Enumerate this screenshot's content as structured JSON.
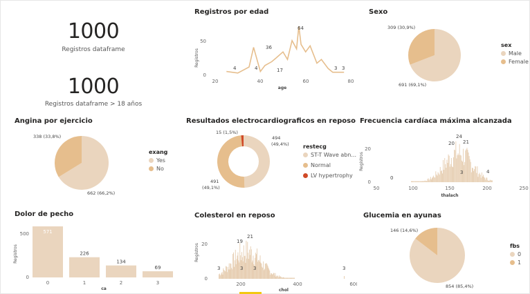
{
  "colors": {
    "light": "#ead5be",
    "dark": "#e6be8d",
    "red": "#d04a27",
    "axis": "#666666",
    "line": "#e6be8d"
  },
  "kpi1": {
    "value": "1000",
    "label": "Registros dataframe"
  },
  "kpi2": {
    "value": "1000",
    "label": "Registros dataframe > 18 años"
  },
  "age": {
    "title": "Registros por edad",
    "ylabel": "Registros",
    "xlabel": "age",
    "yticks": [
      "50",
      "0"
    ],
    "xticks": [
      "20",
      "40",
      "60",
      "80"
    ],
    "labels": [
      "4",
      "4",
      "36",
      "17",
      "64",
      "3",
      "3"
    ]
  },
  "sex": {
    "title": "Sexo",
    "legend_title": "sex",
    "items": [
      {
        "label": "Male",
        "value": 691,
        "text": "691 (69,1%)"
      },
      {
        "label": "Female",
        "value": 309,
        "text": "309 (30,9%)"
      }
    ]
  },
  "angina": {
    "title": "Angina por ejercicio",
    "legend_title": "exang",
    "items": [
      {
        "label": "Yes",
        "value": 662,
        "text": "662 (66,2%)"
      },
      {
        "label": "No",
        "value": 338,
        "text": "338 (33,8%)"
      }
    ]
  },
  "ecg": {
    "title": "Resultados electrocardiograficos en reposo",
    "legend_title": "restecg",
    "items": [
      {
        "label": "ST-T Wave abn...",
        "value": 494,
        "text": "494 (49,4%)"
      },
      {
        "label": "Normal",
        "value": 491,
        "text": "491 (49,1%)"
      },
      {
        "label": "LV hypertrophy",
        "value": 15,
        "text": "15 (1,5%)"
      }
    ]
  },
  "hr": {
    "title": "Frecuencia cardíaca máxima alcanzada",
    "ylabel": "Registros",
    "xlabel": "thalach",
    "yticks": [
      "20",
      "0"
    ],
    "xticks": [
      "50",
      "100",
      "150",
      "200",
      "250"
    ],
    "labels": [
      "0",
      "20",
      "24",
      "21",
      "3",
      "4"
    ]
  },
  "chest": {
    "title": "Dolor de pecho",
    "ylabel": "Registros",
    "xlabel": "ca",
    "yticks": [
      "500",
      "0"
    ],
    "categories": [
      "0",
      "1",
      "2",
      "3"
    ],
    "values": [
      "571",
      "226",
      "134",
      "69"
    ]
  },
  "chol": {
    "title": "Colesterol en reposo",
    "ylabel": "Registros",
    "xlabel": "chol",
    "yticks": [
      "20",
      "0"
    ],
    "xticks": [
      "200",
      "400",
      "600"
    ],
    "labels": [
      "19",
      "21",
      "3",
      "3",
      "3",
      "3"
    ]
  },
  "fbs": {
    "title": "Glucemia en ayunas",
    "legend_title": "fbs",
    "items": [
      {
        "label": "0",
        "value": 854,
        "text": "854 (85,4%)"
      },
      {
        "label": "1",
        "value": 146,
        "text": "146 (14,6%)"
      }
    ]
  },
  "chart_data": [
    {
      "type": "line",
      "title": "Registros por edad",
      "xlabel": "age",
      "ylabel": "Registros",
      "x": [
        25,
        30,
        35,
        37,
        40,
        42,
        45,
        47,
        50,
        52,
        54,
        56,
        57,
        58,
        60,
        62,
        65,
        67,
        70,
        72,
        75,
        77
      ],
      "y": [
        4,
        2,
        10,
        36,
        4,
        12,
        17,
        22,
        30,
        20,
        45,
        34,
        64,
        40,
        30,
        38,
        15,
        20,
        8,
        3,
        3,
        3
      ],
      "xlim": [
        15,
        80
      ]
    },
    {
      "type": "pie",
      "title": "Sexo",
      "labels": [
        "Male",
        "Female"
      ],
      "values": [
        691,
        309
      ]
    },
    {
      "type": "pie",
      "title": "Angina por ejercicio",
      "labels": [
        "Yes",
        "No"
      ],
      "values": [
        662,
        338
      ]
    },
    {
      "type": "pie",
      "title": "Resultados electrocardiograficos en reposo",
      "labels": [
        "ST-T Wave abn...",
        "Normal",
        "LV hypertrophy"
      ],
      "values": [
        494,
        491,
        15
      ]
    },
    {
      "type": "bar",
      "title": "Frecuencia cardíaca máxima alcanzada",
      "xlabel": "thalach",
      "ylabel": "Registros",
      "xlim": [
        50,
        250
      ]
    },
    {
      "type": "bar",
      "title": "Dolor de pecho",
      "xlabel": "ca",
      "ylabel": "Registros",
      "categories": [
        "0",
        "1",
        "2",
        "3"
      ],
      "values": [
        571,
        226,
        134,
        69
      ]
    },
    {
      "type": "bar",
      "title": "Colesterol en reposo",
      "xlabel": "chol",
      "ylabel": "Registros",
      "xlim": [
        100,
        600
      ]
    },
    {
      "type": "pie",
      "title": "Glucemia en ayunas",
      "labels": [
        "0",
        "1"
      ],
      "values": [
        854,
        146
      ]
    }
  ]
}
